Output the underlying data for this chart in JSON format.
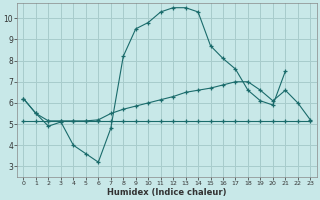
{
  "xlabel": "Humidex (Indice chaleur)",
  "bg_color": "#c8e8e8",
  "grid_color": "#a8cccc",
  "line_color": "#1a6b6b",
  "xlim": [
    -0.5,
    23.5
  ],
  "ylim": [
    2.5,
    10.7
  ],
  "xticks": [
    0,
    1,
    2,
    3,
    4,
    5,
    6,
    7,
    8,
    9,
    10,
    11,
    12,
    13,
    14,
    15,
    16,
    17,
    18,
    19,
    20,
    21,
    22,
    23
  ],
  "yticks": [
    3,
    4,
    5,
    6,
    7,
    8,
    9,
    10
  ],
  "line1_x": [
    0,
    1,
    2,
    3,
    4,
    5,
    6,
    7,
    8,
    9,
    10,
    11,
    12,
    13,
    14,
    15,
    16,
    17,
    18,
    19,
    20,
    21
  ],
  "line1_y": [
    6.2,
    5.5,
    4.9,
    5.1,
    4.0,
    3.6,
    3.2,
    4.8,
    8.2,
    9.5,
    9.8,
    10.3,
    10.5,
    10.5,
    10.3,
    8.7,
    8.1,
    7.6,
    6.6,
    6.1,
    5.9,
    7.5
  ],
  "line2_x": [
    0,
    1,
    2,
    3,
    4,
    5,
    6,
    7,
    8,
    9,
    10,
    11,
    12,
    13,
    14,
    15,
    16,
    17,
    18,
    19,
    20,
    21,
    22,
    23
  ],
  "line2_y": [
    5.15,
    5.15,
    5.15,
    5.15,
    5.15,
    5.15,
    5.15,
    5.15,
    5.15,
    5.15,
    5.15,
    5.15,
    5.15,
    5.15,
    5.15,
    5.15,
    5.15,
    5.15,
    5.15,
    5.15,
    5.15,
    5.15,
    5.15,
    5.15
  ],
  "line3_x": [
    0,
    1,
    2,
    3,
    4,
    5,
    6,
    7,
    8,
    9,
    10,
    11,
    12,
    13,
    14,
    15,
    16,
    17,
    18,
    19,
    20,
    21,
    22,
    23
  ],
  "line3_y": [
    6.2,
    5.5,
    5.15,
    5.15,
    5.15,
    5.15,
    5.2,
    5.5,
    5.7,
    5.85,
    6.0,
    6.15,
    6.3,
    6.5,
    6.6,
    6.7,
    6.85,
    7.0,
    7.0,
    6.6,
    6.1,
    6.6,
    6.0,
    5.2
  ]
}
